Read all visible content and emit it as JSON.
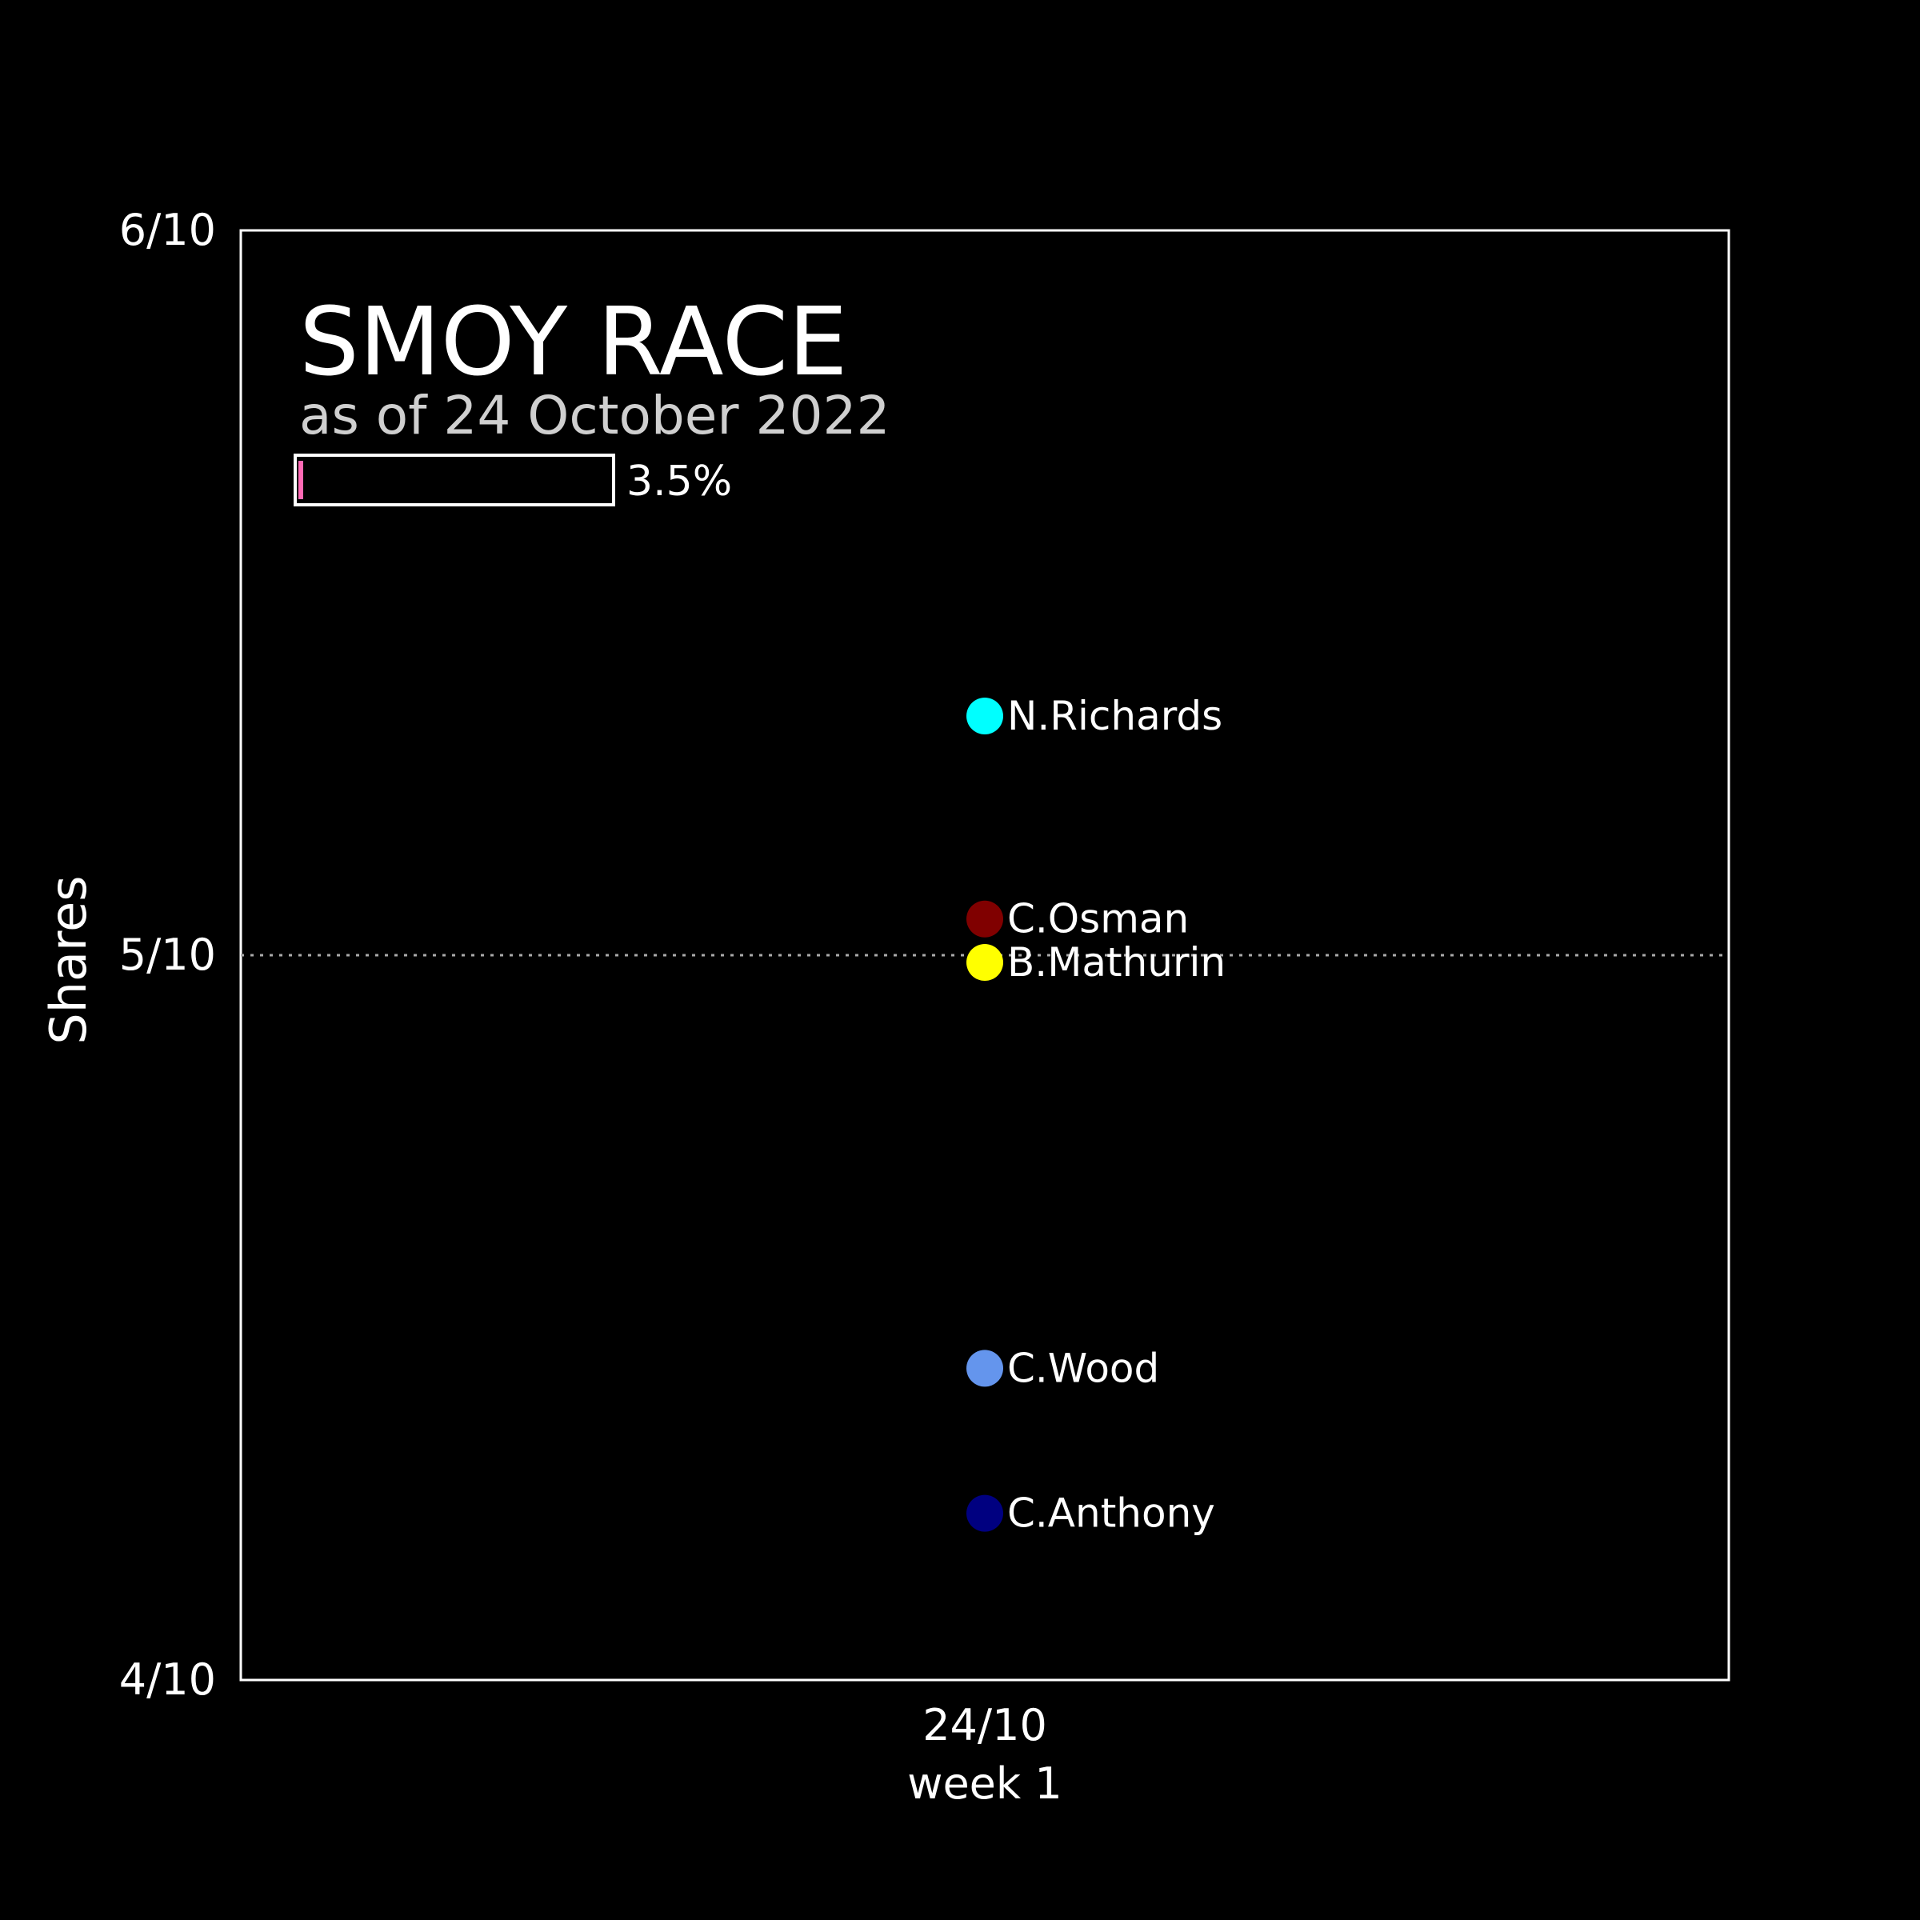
{
  "chart_data": {
    "type": "scatter",
    "title": "SMOY RACE",
    "subtitle": "as of 24 October 2022",
    "progress": {
      "value_percent": 3.5,
      "label": "3.5%",
      "fill_color": "#ff69b4"
    },
    "ylabel": "Shares",
    "y_ticks": [
      {
        "value": 0.4,
        "label": "4/10"
      },
      {
        "value": 0.5,
        "label": "5/10"
      },
      {
        "value": 0.6,
        "label": "6/10"
      }
    ],
    "ylim": [
      0.4,
      0.6
    ],
    "x_ticks": [
      {
        "value": 1,
        "label": "24/10",
        "sublabel": "week 1"
      }
    ],
    "xlim": [
      0,
      2
    ],
    "reference_line": {
      "value": 0.5,
      "style": "dotted"
    },
    "series": [
      {
        "name": "N.Richards",
        "x": 1,
        "y": 0.533,
        "color": "#00ffff"
      },
      {
        "name": "C.Osman",
        "x": 1,
        "y": 0.505,
        "color": "#800000"
      },
      {
        "name": "B.Mathurin",
        "x": 1,
        "y": 0.499,
        "color": "#ffff00"
      },
      {
        "name": "C.Wood",
        "x": 1,
        "y": 0.443,
        "color": "#6495ed"
      },
      {
        "name": "C.Anthony",
        "x": 1,
        "y": 0.423,
        "color": "#000080"
      }
    ],
    "background": "#000000",
    "grid": false
  }
}
